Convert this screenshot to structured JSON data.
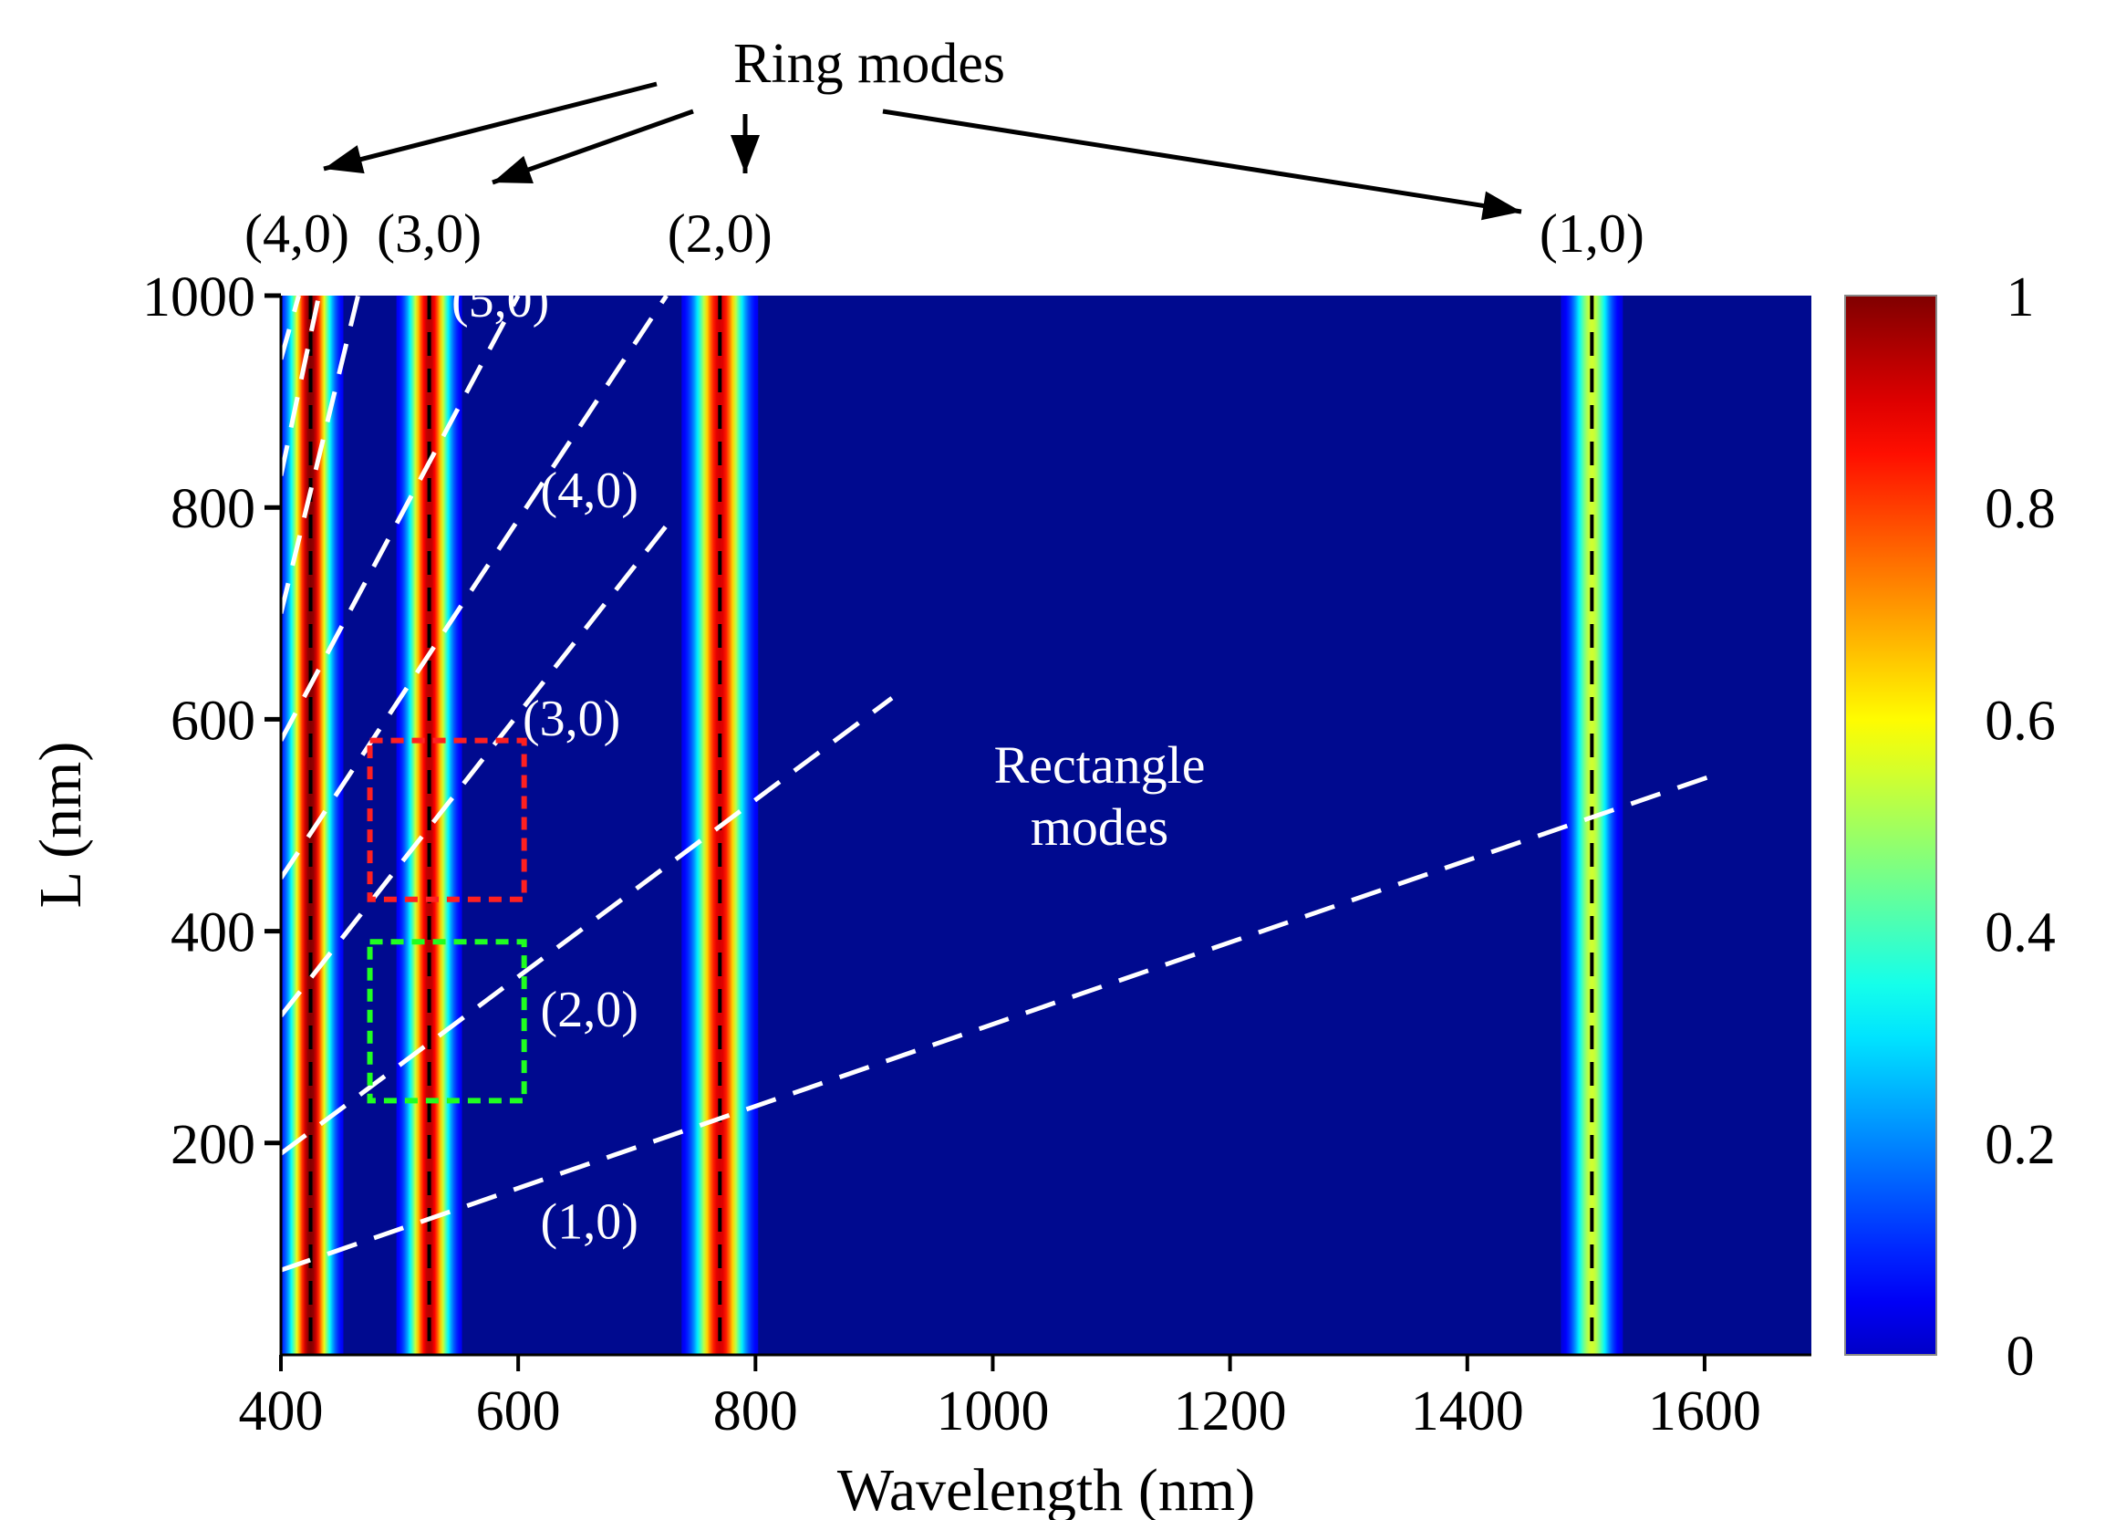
{
  "chart_data": {
    "type": "heatmap",
    "xlabel": "Wavelength (nm)",
    "ylabel": "L (nm)",
    "xlim": [
      400,
      1690
    ],
    "ylim": [
      0,
      1000
    ],
    "xticks": [
      400,
      600,
      800,
      1000,
      1200,
      1400,
      1600
    ],
    "yticks": [
      200,
      400,
      600,
      800,
      1000
    ],
    "colorbar": {
      "range": [
        0,
        1
      ],
      "ticks": [
        0,
        0.2,
        0.4,
        0.6,
        0.8,
        1
      ],
      "tick_labels": [
        "0",
        "0.2",
        "0.4",
        "0.6",
        "0.8",
        "1"
      ],
      "colormap": "jet"
    },
    "ring_modes_label": "Ring modes",
    "rectangle_modes_label": "Rectangle\nmodes",
    "ring_modes": [
      {
        "label": "(4,0)",
        "wavelength": 425,
        "peak": 1.0
      },
      {
        "label": "(3,0)",
        "wavelength": 525,
        "peak": 0.95
      },
      {
        "label": "(2,0)",
        "wavelength": 770,
        "peak": 0.92
      },
      {
        "label": "(1,0)",
        "wavelength": 1505,
        "peak": 0.58
      }
    ],
    "rectangle_modes": [
      {
        "label": "(1,0)",
        "L_start": 80,
        "L_end": 550,
        "wl_start": 400,
        "wl_end": 1615
      },
      {
        "label": "(2,0)",
        "L_start": 190,
        "L_end": 620,
        "wl_start": 400,
        "wl_end": 915
      },
      {
        "label": "(3,0)",
        "L_start": 320,
        "L_end": 790,
        "wl_start": 400,
        "wl_end": 730
      },
      {
        "label": "(4,0)",
        "L_start": 450,
        "L_end": 1000,
        "wl_start": 400,
        "wl_end": 725
      },
      {
        "label": "(5,0)",
        "L_start": 580,
        "L_end": 1000,
        "wl_start": 400,
        "wl_end": 600
      },
      {
        "label": "",
        "L_start": 700,
        "L_end": 1000,
        "wl_start": 400,
        "wl_end": 465
      },
      {
        "label": "",
        "L_start": 830,
        "L_end": 1000,
        "wl_start": 400,
        "wl_end": 432
      },
      {
        "label": "",
        "L_start": 940,
        "L_end": 1000,
        "wl_start": 400,
        "wl_end": 415
      }
    ],
    "highlight_boxes": [
      {
        "color": "#ff2020",
        "wl_range": [
          475,
          605
        ],
        "L_range": [
          430,
          580
        ]
      },
      {
        "color": "#20ff20",
        "wl_range": [
          475,
          605
        ],
        "L_range": [
          240,
          390
        ]
      }
    ],
    "inline_mode_labels": [
      {
        "label": "(5,0)",
        "wavelength": 585,
        "L": 980
      },
      {
        "label": "(4,0)",
        "wavelength": 660,
        "L": 800
      },
      {
        "label": "(3,0)",
        "wavelength": 645,
        "L": 585
      },
      {
        "label": "(2,0)",
        "wavelength": 660,
        "L": 310
      },
      {
        "label": "(1,0)",
        "wavelength": 660,
        "L": 110
      }
    ]
  }
}
